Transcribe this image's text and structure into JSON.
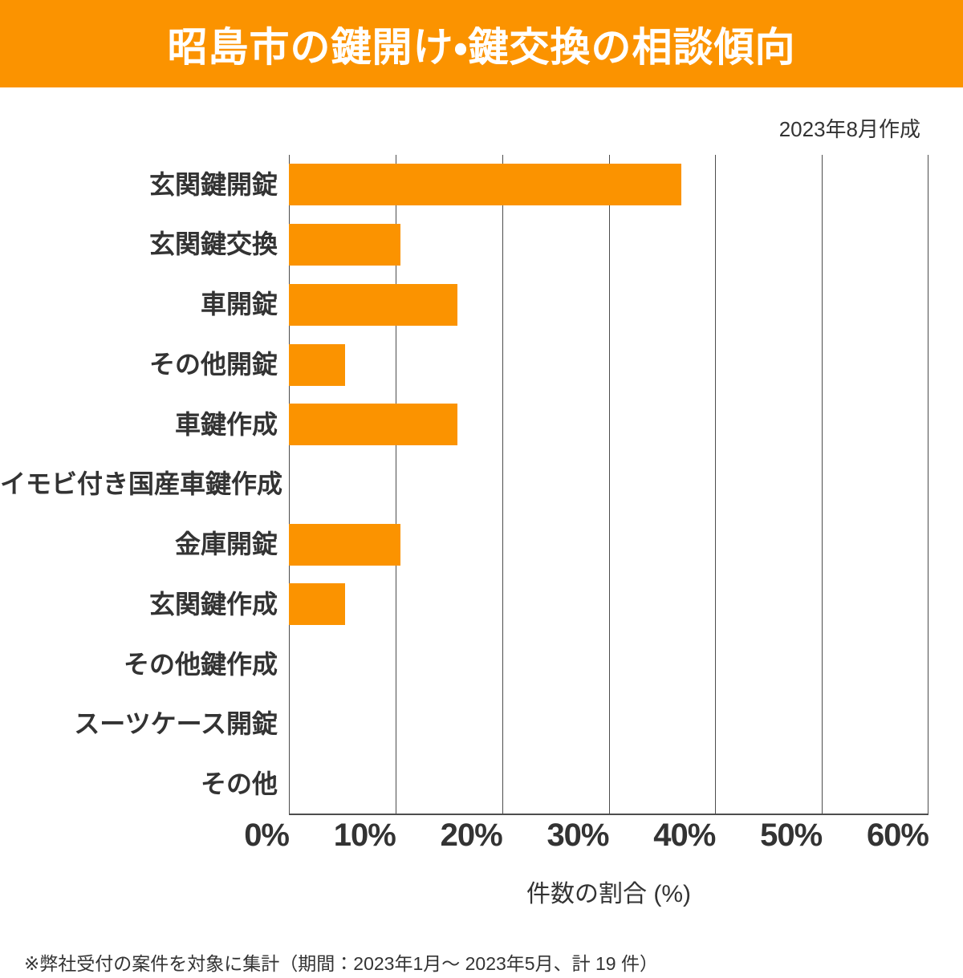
{
  "header": {
    "title": "昭島市の鍵開け・鍵交換の相談傾向"
  },
  "meta": {
    "created_label": "2023年8月作成"
  },
  "chart_data": {
    "type": "bar",
    "orientation": "horizontal",
    "title": "昭島市の鍵開け・鍵交換の相談傾向",
    "categories": [
      "玄関鍵開錠",
      "玄関鍵交換",
      "車開錠",
      "その他開錠",
      "車鍵作成",
      "イモビ付き国産車鍵作成",
      "金庫開錠",
      "玄関鍵作成",
      "その他鍵作成",
      "スーツケース開錠",
      "その他"
    ],
    "values": [
      36.8,
      10.5,
      15.8,
      5.3,
      15.8,
      0,
      10.5,
      5.3,
      0,
      0,
      0
    ],
    "unit": "%",
    "xlabel": "件数の割合 (%)",
    "ylabel": "",
    "xlim": [
      0,
      60
    ],
    "xticks": [
      0,
      10,
      20,
      30,
      40,
      50,
      60
    ],
    "xtick_labels": [
      "0%",
      "10%",
      "20%",
      "30%",
      "40%",
      "50%",
      "60%"
    ],
    "grid": "vertical-only",
    "legend": "none",
    "bar_color": "#FB9300",
    "total_cases": 19
  },
  "footnote": "※弊社受付の案件を対象に集計（期間：2023年1月～ 2023年5月、計 19 件）",
  "colors": {
    "accent": "#FB9300",
    "header_bg": "#FB9300",
    "header_text": "#FFFFFF",
    "text": "#333333",
    "gridline": "#4d4d4d",
    "background": "#FFFFFF"
  }
}
